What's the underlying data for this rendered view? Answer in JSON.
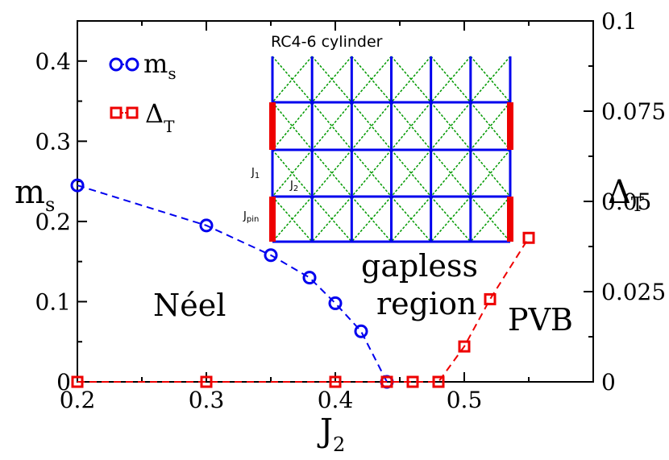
{
  "chart_data": {
    "type": "scatter",
    "x_label": "J",
    "x_label_sub": "2",
    "y_left_label": "m",
    "y_left_label_sub": "s",
    "y_right_label": "Δ",
    "y_right_label_sub": "T",
    "xlim": [
      0.2,
      0.6
    ],
    "ylim_left": [
      0,
      0.45
    ],
    "ylim_right": [
      0,
      0.1
    ],
    "x_ticks": [
      0.2,
      0.3,
      0.4,
      0.5
    ],
    "x_tick_labels": [
      "0.2",
      "0.3",
      "0.4",
      "0.5"
    ],
    "y_left_ticks": [
      0,
      0.1,
      0.2,
      0.3,
      0.4
    ],
    "y_left_tick_labels": [
      "0",
      "0.1",
      "0.2",
      "0.3",
      "0.4"
    ],
    "y_right_ticks": [
      0,
      0.025,
      0.05,
      0.075,
      0.1
    ],
    "y_right_tick_labels": [
      "0",
      "0.025",
      "0.05",
      "0.075",
      "0.1"
    ],
    "series": [
      {
        "name": "m",
        "name_sub": "s",
        "axis": "left",
        "color": "#0000ee",
        "marker": "circle",
        "x": [
          0.2,
          0.3,
          0.35,
          0.38,
          0.4,
          0.42,
          0.44
        ],
        "y": [
          0.245,
          0.195,
          0.158,
          0.13,
          0.098,
          0.063,
          0.0
        ]
      },
      {
        "name": "Δ",
        "name_sub": "T",
        "axis": "right",
        "color": "#ee0000",
        "marker": "square",
        "x": [
          0.2,
          0.3,
          0.4,
          0.44,
          0.46,
          0.48,
          0.5,
          0.52,
          0.55
        ],
        "y": [
          0.0,
          0.0,
          0.0,
          0.0,
          0.0,
          0.0,
          0.0098,
          0.0229,
          0.0399
        ]
      }
    ],
    "annotations": {
      "neel": "Néel",
      "gapless_line1": "gapless",
      "gapless_line2": "region",
      "pvb": "PVB"
    },
    "inset": {
      "title": "RC4-6  cylinder",
      "j1_label": "J",
      "j1_sub": "1",
      "j2_label": "J",
      "j2_sub": "2",
      "jpin_label": "J",
      "jpin_sub": "pin",
      "columns": 6,
      "rows": 4,
      "line_color": "#0000ee",
      "diag_color": "#009900",
      "pin_color": "#ee0000"
    }
  }
}
